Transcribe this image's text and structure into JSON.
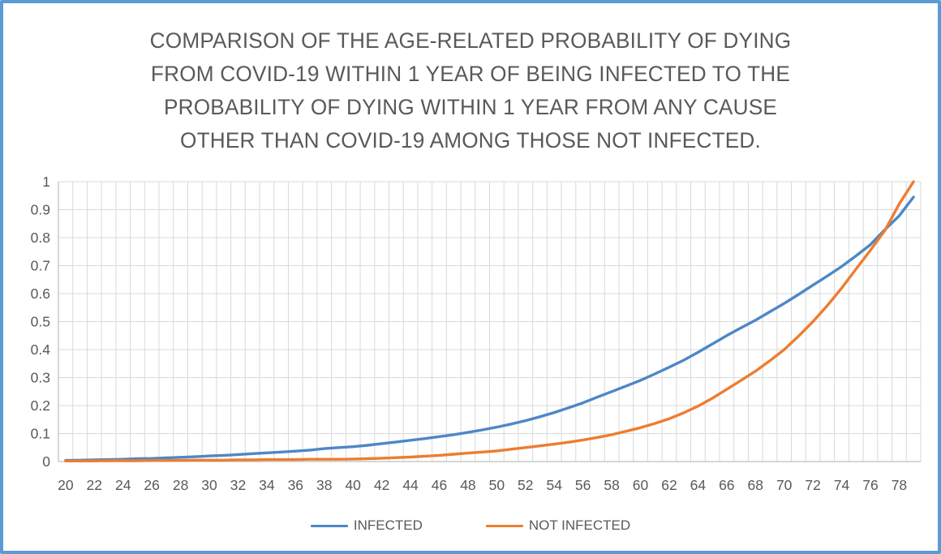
{
  "frame": {
    "border_color": "#5b9bd5",
    "background": "#ffffff"
  },
  "styles": {
    "grid_color": "#d9d9d9",
    "axis_line_color": "#bfbfbf",
    "tick_label_color": "#595959",
    "title_color": "#595959"
  },
  "chart_data": {
    "type": "line",
    "title": "COMPARISON OF THE AGE-RELATED PROBABILITY OF DYING FROM COVID-19 WITHIN 1 YEAR OF BEING INFECTED TO THE PROBABILITY OF DYING WITHIN 1 YEAR FROM ANY CAUSE OTHER THAN COVID-19 AMONG THOSE NOT INFECTED.",
    "title_lines": [
      "COMPARISON OF THE AGE-RELATED PROBABILITY OF DYING",
      "FROM COVID-19 WITHIN 1 YEAR OF BEING INFECTED TO THE",
      "PROBABILITY OF DYING WITHIN 1 YEAR FROM ANY CAUSE",
      "OTHER THAN COVID-19 AMONG THOSE NOT INFECTED."
    ],
    "xlabel": "",
    "ylabel": "",
    "ylim": [
      0,
      1
    ],
    "grid": "both",
    "legend_position": "bottom",
    "x": [
      20,
      21,
      22,
      23,
      24,
      25,
      26,
      27,
      28,
      29,
      30,
      31,
      32,
      33,
      34,
      35,
      36,
      37,
      38,
      39,
      40,
      41,
      42,
      43,
      44,
      45,
      46,
      47,
      48,
      49,
      50,
      51,
      52,
      53,
      54,
      55,
      56,
      57,
      58,
      59,
      60,
      61,
      62,
      63,
      64,
      65,
      66,
      67,
      68,
      69,
      70,
      71,
      72,
      73,
      74,
      75,
      76,
      77,
      78,
      79
    ],
    "x_tick_labels": [
      "20",
      "22",
      "24",
      "26",
      "28",
      "30",
      "32",
      "34",
      "36",
      "38",
      "40",
      "42",
      "44",
      "46",
      "48",
      "50",
      "52",
      "54",
      "56",
      "58",
      "60",
      "62",
      "64",
      "66",
      "68",
      "70",
      "72",
      "74",
      "76",
      "78"
    ],
    "y_tick_labels": [
      "0",
      "0.1",
      "0.2",
      "0.3",
      "0.4",
      "0.5",
      "0.6",
      "0.7",
      "0.8",
      "0.9",
      "1"
    ],
    "series": [
      {
        "name": "INFECTED",
        "color": "#4d87c7",
        "values": [
          0.004,
          0.005,
          0.006,
          0.007,
          0.008,
          0.01,
          0.011,
          0.013,
          0.015,
          0.017,
          0.02,
          0.022,
          0.025,
          0.028,
          0.031,
          0.034,
          0.037,
          0.041,
          0.046,
          0.05,
          0.053,
          0.058,
          0.064,
          0.07,
          0.076,
          0.082,
          0.089,
          0.096,
          0.104,
          0.113,
          0.123,
          0.134,
          0.146,
          0.16,
          0.175,
          0.192,
          0.21,
          0.23,
          0.25,
          0.27,
          0.29,
          0.313,
          0.337,
          0.362,
          0.39,
          0.42,
          0.45,
          0.478,
          0.505,
          0.535,
          0.565,
          0.597,
          0.63,
          0.663,
          0.697,
          0.735,
          0.775,
          0.828,
          0.878,
          0.945
        ]
      },
      {
        "name": "NOT INFECTED",
        "color": "#ed7d31",
        "values": [
          0.002,
          0.002,
          0.002,
          0.003,
          0.003,
          0.003,
          0.004,
          0.004,
          0.004,
          0.005,
          0.005,
          0.005,
          0.006,
          0.006,
          0.007,
          0.007,
          0.007,
          0.008,
          0.008,
          0.008,
          0.009,
          0.01,
          0.012,
          0.014,
          0.016,
          0.019,
          0.022,
          0.026,
          0.03,
          0.034,
          0.038,
          0.044,
          0.05,
          0.056,
          0.062,
          0.069,
          0.077,
          0.086,
          0.096,
          0.108,
          0.121,
          0.136,
          0.153,
          0.174,
          0.198,
          0.226,
          0.258,
          0.29,
          0.323,
          0.36,
          0.4,
          0.448,
          0.5,
          0.557,
          0.62,
          0.688,
          0.755,
          0.825,
          0.92,
          1.0
        ]
      }
    ]
  }
}
